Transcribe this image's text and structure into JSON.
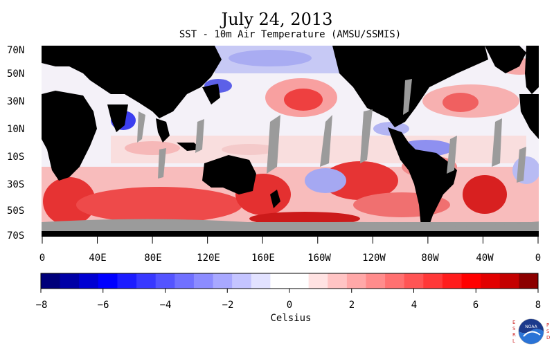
{
  "title": "July 24, 2013",
  "subtitle": "SST - 10m Air Temperature (AMSU/SSMIS)",
  "lat_labels": [
    "70N",
    "50N",
    "30N",
    "10N",
    "10S",
    "30S",
    "50S",
    "70S"
  ],
  "lon_labels": [
    "0",
    "40E",
    "80E",
    "120E",
    "160E",
    "160W",
    "120W",
    "80W",
    "40W",
    "0"
  ],
  "colorbar": {
    "min": -8,
    "max": 8,
    "step": 0.5,
    "tick_labels": [
      "−8",
      "−6",
      "−4",
      "−2",
      "0",
      "2",
      "4",
      "6",
      "8"
    ],
    "label": "Celsius",
    "colors": [
      "#00007a",
      "#0000a6",
      "#0000d2",
      "#0000ff",
      "#1c1cff",
      "#3838ff",
      "#5454ff",
      "#7070ff",
      "#8c8cff",
      "#a8a8ff",
      "#c4c4ff",
      "#e2e2ff",
      "#ffffff",
      "#ffffff",
      "#ffe2e2",
      "#ffc4c4",
      "#ffa8a8",
      "#ff8c8c",
      "#ff7070",
      "#ff5454",
      "#ff3838",
      "#ff1c1c",
      "#ff0000",
      "#e20000",
      "#c40000",
      "#8c0000"
    ]
  },
  "logo": {
    "left_letters": "ESRL",
    "right_letters": "PSD",
    "center": "NOAA"
  }
}
